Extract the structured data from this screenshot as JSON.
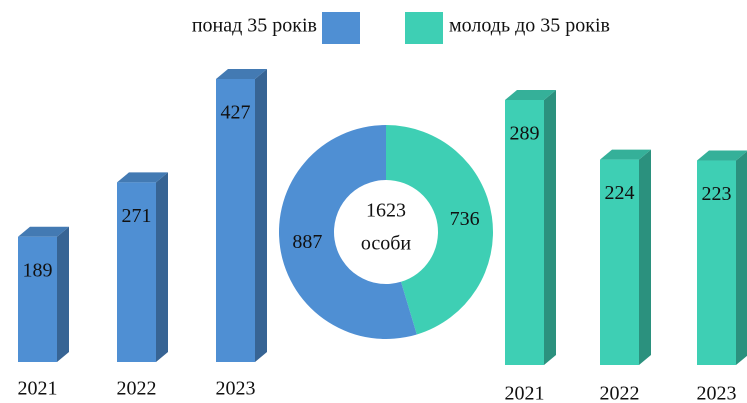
{
  "chart_data": [
    {
      "type": "bar",
      "name": "понад 35 років",
      "color": "#4f8fd3",
      "categories": [
        "2021",
        "2022",
        "2023"
      ],
      "values": [
        189,
        271,
        427
      ]
    },
    {
      "type": "pie",
      "donut": true,
      "values": [
        887,
        736
      ],
      "colors": [
        "#4f8fd3",
        "#3ecfb4"
      ],
      "center_value": 1623,
      "center_label": "особи"
    },
    {
      "type": "bar",
      "name": "молодь до 35 років",
      "color": "#3ecfb4",
      "categories": [
        "2021",
        "2022",
        "2023"
      ],
      "values": [
        289,
        224,
        223
      ]
    }
  ]
}
